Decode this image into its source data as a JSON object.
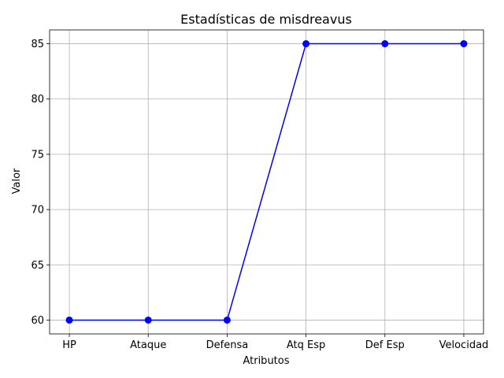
{
  "chart_data": {
    "type": "line",
    "title": "Estadísticas de misdreavus",
    "xlabel": "Atributos",
    "ylabel": "Valor",
    "categories": [
      "HP",
      "Ataque",
      "Defensa",
      "Atq Esp",
      "Def Esp",
      "Velocidad"
    ],
    "series": [
      {
        "values": [
          60,
          60,
          60,
          85,
          85,
          85
        ],
        "color": "#0000ff",
        "marker": "circle"
      }
    ],
    "ylim": [
      58.75,
      86.25
    ],
    "yticks": [
      60,
      65,
      70,
      75,
      80,
      85
    ],
    "grid": true,
    "legend": "none"
  }
}
